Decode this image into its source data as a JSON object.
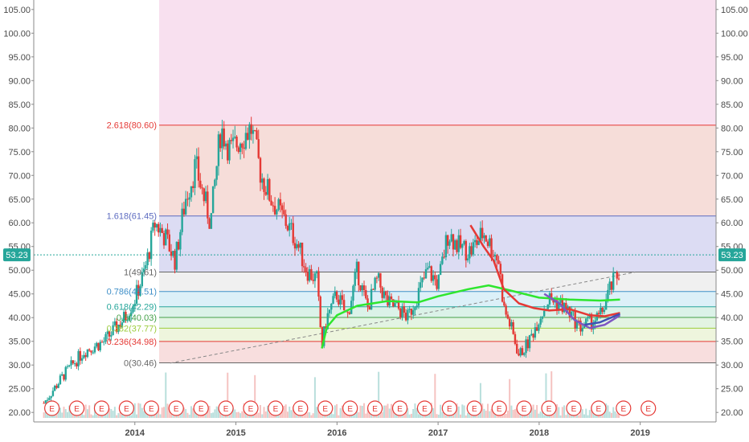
{
  "chart_data": {
    "type": "candlestick",
    "y_axis": {
      "min": 18,
      "max": 107,
      "ticks": [
        "105.00",
        "100.00",
        "95.00",
        "90.00",
        "85.00",
        "80.00",
        "75.00",
        "70.00",
        "65.00",
        "60.00",
        "55.00",
        "50.00",
        "45.00",
        "40.00",
        "35.00",
        "30.00",
        "25.00",
        "20.00"
      ]
    },
    "x_axis": {
      "labels": [
        "2014",
        "2015",
        "2016",
        "2017",
        "2018",
        "2019"
      ]
    },
    "current_price": {
      "label": "53.23",
      "value": 53.23,
      "color": "#26a69a"
    },
    "fibonacci": {
      "levels": [
        {
          "label": "2.618(80.60)",
          "value": 80.6,
          "color": "#e53935"
        },
        {
          "label": "1.618(61.45)",
          "value": 61.45,
          "color": "#5c6bc0"
        },
        {
          "label": "1(49.61)",
          "value": 49.61,
          "color": "#666666"
        },
        {
          "label": "0.786(45.51)",
          "value": 45.51,
          "color": "#3f8fc8"
        },
        {
          "label": "0.618(42.29)",
          "value": 42.29,
          "color": "#26a69a"
        },
        {
          "label": "0.5(40.03)",
          "value": 40.03,
          "color": "#43a047"
        },
        {
          "label": "0.382(37.77)",
          "value": 37.77,
          "color": "#9ccc3c"
        },
        {
          "label": "0.236(34.98)",
          "value": 34.98,
          "color": "#e53935"
        },
        {
          "label": "0(30.46)",
          "value": 30.46,
          "color": "#666666"
        }
      ],
      "zone_colors": [
        "#f8e0ef",
        "#f6ddd9",
        "#dcdcf3",
        "#f0f0f0",
        "#dcf0f8",
        "#dbf2e8",
        "#e3f4e3",
        "#eef5dd",
        "#f8dede"
      ]
    },
    "earnings_marker": "E",
    "earnings_count": 25,
    "series": [
      {
        "name": "",
        "color": "#2ee62e",
        "x": [
          2015.85,
          2015.9,
          2016.0,
          2016.2,
          2016.5,
          2016.8,
          2017.0,
          2017.3,
          2017.5,
          2017.7,
          2018.0,
          2018.3,
          2018.6,
          2018.8
        ],
        "values": [
          33.5,
          38.0,
          40.5,
          42.5,
          43.5,
          43.2,
          44.5,
          46.0,
          46.8,
          45.8,
          44.2,
          43.8,
          43.6,
          43.8
        ]
      },
      {
        "name": "",
        "color": "#e53935",
        "x": [
          2017.32,
          2017.45,
          2017.55,
          2017.65,
          2017.8,
          2017.95,
          2018.1,
          2018.3,
          2018.5,
          2018.65,
          2018.8
        ],
        "values": [
          59.5,
          55.0,
          52.0,
          46.0,
          43.0,
          42.0,
          41.5,
          41.8,
          40.5,
          40.3,
          41.0
        ]
      },
      {
        "name": "",
        "color": "#7e57c2",
        "x": [
          2018.05,
          2018.2,
          2018.35,
          2018.5,
          2018.65,
          2018.8
        ],
        "values": [
          45.0,
          43.0,
          39.5,
          37.8,
          38.5,
          40.5
        ]
      },
      {
        "name": "",
        "color": "#3f51b5",
        "x": [
          2018.45,
          2018.6,
          2018.8
        ],
        "values": [
          38.5,
          39.0,
          40.8
        ]
      }
    ],
    "trendline": {
      "x": [
        2014.35,
        2018.95
      ],
      "values": [
        30.4,
        49.6
      ]
    },
    "price_path": {
      "x": [
        2013.1,
        2013.3,
        2013.5,
        2013.7,
        2013.9,
        2014.0,
        2014.1,
        2014.2,
        2014.3,
        2014.4,
        2014.5,
        2014.6,
        2014.75,
        2014.85,
        2014.95,
        2015.05,
        2015.15,
        2015.25,
        2015.35,
        2015.5,
        2015.6,
        2015.7,
        2015.8,
        2015.85,
        2015.9,
        2016.0,
        2016.1,
        2016.2,
        2016.3,
        2016.4,
        2016.5,
        2016.6,
        2016.7,
        2016.8,
        2016.9,
        2017.0,
        2017.1,
        2017.2,
        2017.32,
        2017.45,
        2017.55,
        2017.6,
        2017.65,
        2017.72,
        2017.8,
        2017.9,
        2018.0,
        2018.1,
        2018.2,
        2018.3,
        2018.4,
        2018.5,
        2018.6,
        2018.7,
        2018.8
      ],
      "values": [
        22,
        28,
        33,
        35,
        40,
        44,
        50,
        60,
        57,
        52,
        65,
        72,
        60,
        80,
        75,
        78,
        80,
        70,
        65,
        60,
        56,
        50,
        48,
        34,
        40,
        45,
        40,
        50,
        42,
        48,
        43,
        42,
        40,
        45,
        50,
        47,
        58,
        55,
        54,
        58,
        54,
        52,
        42,
        38,
        32,
        35,
        40,
        44,
        43,
        41,
        38,
        39,
        40,
        46,
        50
      ]
    }
  }
}
